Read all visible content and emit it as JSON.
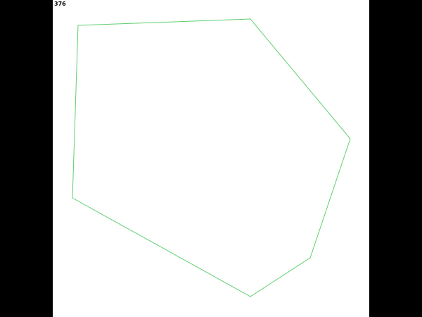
{
  "frame_counter": "376",
  "colors": {
    "background": "#000000",
    "canvas": "#ffffff",
    "outline": "#5fcf6f",
    "label": "#000000"
  },
  "shape": {
    "kind": "heptagon-outline",
    "filled": false
  }
}
